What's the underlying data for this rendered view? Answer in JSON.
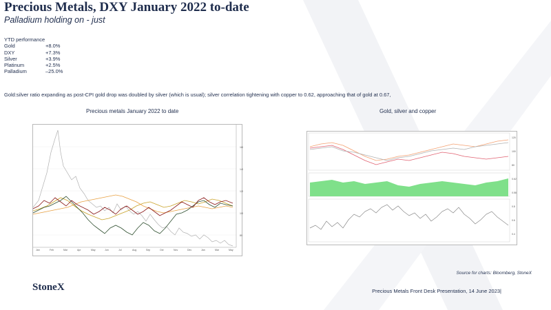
{
  "header": {
    "title": "Precious Metals, DXY January 2022 to-date",
    "subtitle": "Palladium holding on - just"
  },
  "performance": {
    "heading": "YTD performance",
    "rows": [
      {
        "name": "Gold",
        "value": "+8.0%"
      },
      {
        "name": "DXY",
        "value": "+7.3%"
      },
      {
        "name": "Silver",
        "value": "+3.9%"
      },
      {
        "name": "Platinum",
        "value": "+2.5%"
      },
      {
        "name": "Palladium",
        "value": "–25.0%"
      }
    ]
  },
  "note": "Gold:silver  ratio expanding  as post-CPI gold drop was doubled by silver  (which is usual); silver  correlation tightening with  copper to 0.62, approaching that of gold at 0.67,",
  "charts": {
    "left_title": "Precious metals January 2022 to date",
    "right_title": "Gold, silver and copper"
  },
  "colors": {
    "text": "#1f2d4d",
    "gold": "#c9a227",
    "silver": "#a8a8a8",
    "platinum": "#2f4f2f",
    "palladium": "#8b1a1a",
    "dxy": "#e8a040",
    "ratio_area": "#7fe08a",
    "copper": "#f4a070"
  },
  "source": "Source for charts: Bloomberg, StoneX",
  "logo": "StoneX",
  "footer": "Precious Metals Front Desk Presentation, 14 June 2023|"
}
